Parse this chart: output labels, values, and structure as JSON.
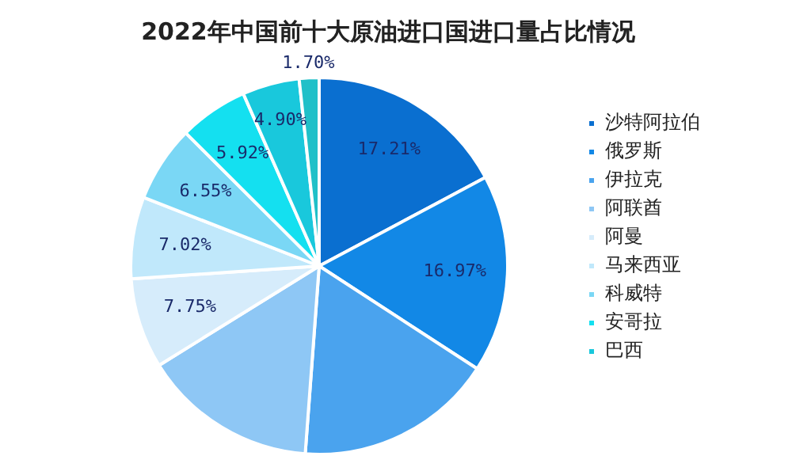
{
  "chart_data": {
    "type": "pie",
    "title": "2022年中国前十大原油进口国进口量占比情况",
    "categories": [
      "沙特阿拉伯",
      "俄罗斯",
      "伊拉克",
      "阿联酋",
      "阿曼",
      "马来西亚",
      "科威特",
      "安哥拉",
      "巴西",
      null
    ],
    "values": [
      17.21,
      16.97,
      17,
      14.98,
      7.75,
      7.02,
      6.55,
      5.92,
      4.9,
      1.7
    ],
    "colors": [
      "#0a6fd0",
      "#1288e6",
      "#4aa3ee",
      "#8ec7f5",
      "#d6ecfb",
      "#c0e8fb",
      "#7ad7f5",
      "#14e0f0",
      "#19c8dc",
      "#20c0c8"
    ],
    "value_labels": [
      "17.21%",
      "16.97%",
      null,
      null,
      "7.75%",
      "7.02%",
      "6.55%",
      "5.92%",
      "4.90%",
      "1.70%"
    ],
    "legend": "right"
  }
}
